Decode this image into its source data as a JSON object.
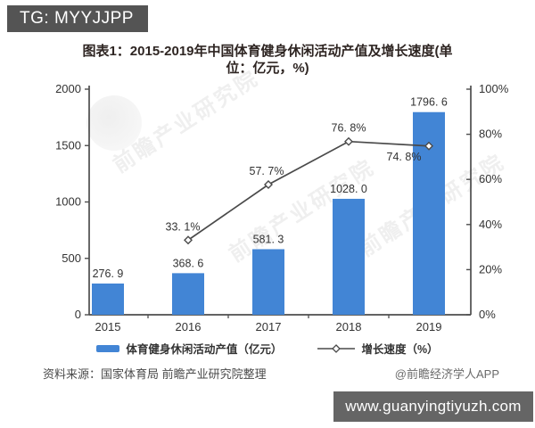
{
  "header": {
    "tg_badge": "TG: MYYJJPP"
  },
  "title": {
    "line1": "图表1：2015-2019年中国体育健身休闲活动产值及增长速度(单",
    "line2": "位：亿元，%)"
  },
  "chart_data": {
    "type": "bar",
    "categories": [
      "2015",
      "2016",
      "2017",
      "2018",
      "2019"
    ],
    "series": [
      {
        "name": "体育健身休闲活动产值（亿元）",
        "type": "bar",
        "axis": "left",
        "values": [
          276.9,
          368.6,
          581.3,
          1028.0,
          1796.6
        ],
        "labels": [
          "276. 9",
          "368. 6",
          "581. 3",
          "1028. 0",
          "1796. 6"
        ],
        "color": "#4285d5"
      },
      {
        "name": "增长速度（%）",
        "type": "line",
        "axis": "right",
        "values": [
          null,
          33.1,
          57.7,
          76.8,
          74.8
        ],
        "labels": [
          "33. 1%",
          "57. 7%",
          "76. 8%",
          "74. 8%"
        ],
        "color": "#4a4a4a"
      }
    ],
    "left_axis": {
      "min": 0,
      "max": 2000,
      "ticks": [
        "0",
        "500",
        "1000",
        "1500",
        "2000"
      ]
    },
    "right_axis": {
      "min": 0,
      "max": 100,
      "ticks": [
        "0%",
        "20%",
        "40%",
        "60%",
        "80%",
        "100%"
      ]
    },
    "grid": false,
    "legend_position": "bottom"
  },
  "watermark": {
    "text": "前瞻产业研究院"
  },
  "source": {
    "left": "资料来源：国家体育局 前瞻产业研究院整理",
    "right": "@前瞻经济学人APP"
  },
  "footer": {
    "url": "www.guanyingtiyuzh.com"
  },
  "colors": {
    "bar": "#4285d5",
    "line": "#4a4a4a",
    "axis": "#4d4d4d",
    "label_text": "#333333",
    "badge_bg": "#545454",
    "footer_bg": "#656565"
  }
}
